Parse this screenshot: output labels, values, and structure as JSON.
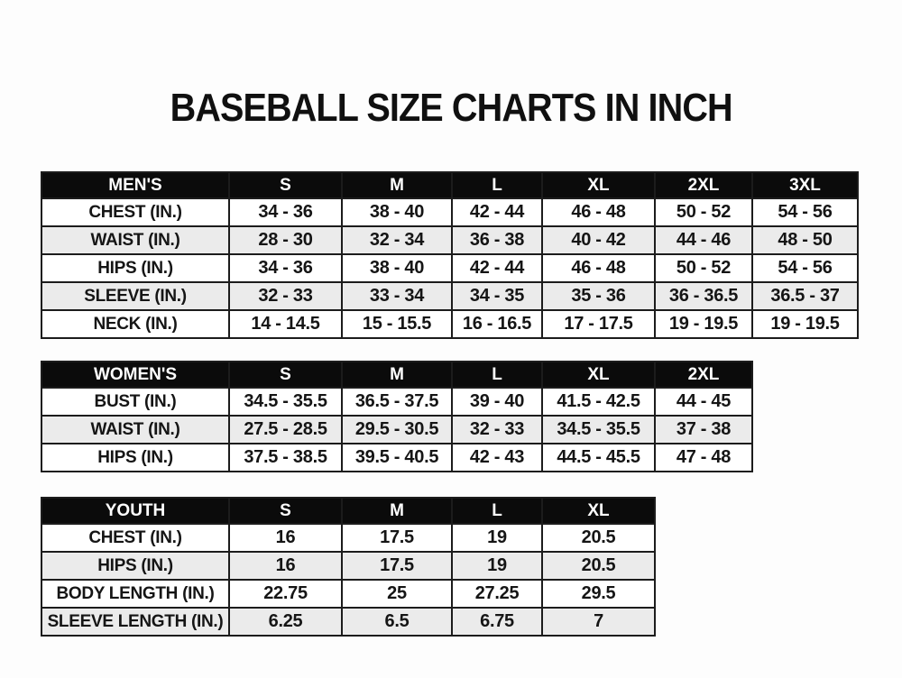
{
  "page": {
    "title": "BASEBALL SIZE CHARTS IN INCH"
  },
  "colors": {
    "header_bg": "#0b0b0b",
    "header_text": "#ffffff",
    "row_bg": "#ffffff",
    "row_alt_bg": "#ebebeb",
    "border": "#1c1c1c",
    "text": "#151515",
    "page_bg": "#fdfdfd"
  },
  "tables": [
    {
      "name": "mens",
      "header": [
        "MEN'S",
        "S",
        "M",
        "L",
        "XL",
        "2XL",
        "3XL"
      ],
      "rows": [
        {
          "label": "CHEST (IN.)",
          "values": [
            "34 - 36",
            "38 - 40",
            "42 - 44",
            "46 - 48",
            "50 - 52",
            "54 - 56"
          ]
        },
        {
          "label": "WAIST (IN.)",
          "values": [
            "28 - 30",
            "32 - 34",
            "36 - 38",
            "40 - 42",
            "44 - 46",
            "48 - 50"
          ]
        },
        {
          "label": "HIPS (IN.)",
          "values": [
            "34 - 36",
            "38 - 40",
            "42 - 44",
            "46 - 48",
            "50 - 52",
            "54 - 56"
          ]
        },
        {
          "label": "SLEEVE (IN.)",
          "values": [
            "32 - 33",
            "33 - 34",
            "34 - 35",
            "35 - 36",
            "36 - 36.5",
            "36.5 - 37"
          ]
        },
        {
          "label": "NECK (IN.)",
          "values": [
            "14 - 14.5",
            "15 - 15.5",
            "16 - 16.5",
            "17 - 17.5",
            "19 - 19.5",
            "19 - 19.5"
          ]
        }
      ]
    },
    {
      "name": "womens",
      "header": [
        "WOMEN'S",
        "S",
        "M",
        "L",
        "XL",
        "2XL"
      ],
      "rows": [
        {
          "label": "BUST (IN.)",
          "values": [
            "34.5 - 35.5",
            "36.5 - 37.5",
            "39 - 40",
            "41.5 - 42.5",
            "44 - 45"
          ]
        },
        {
          "label": "WAIST (IN.)",
          "values": [
            "27.5 - 28.5",
            "29.5 - 30.5",
            "32 - 33",
            "34.5 - 35.5",
            "37 - 38"
          ]
        },
        {
          "label": "HIPS (IN.)",
          "values": [
            "37.5 - 38.5",
            "39.5 - 40.5",
            "42 - 43",
            "44.5 - 45.5",
            "47 - 48"
          ]
        }
      ]
    },
    {
      "name": "youth",
      "header": [
        "YOUTH",
        "S",
        "M",
        "L",
        "XL"
      ],
      "rows": [
        {
          "label": "CHEST (IN.)",
          "values": [
            "16",
            "17.5",
            "19",
            "20.5"
          ]
        },
        {
          "label": "HIPS (IN.)",
          "values": [
            "16",
            "17.5",
            "19",
            "20.5"
          ]
        },
        {
          "label": "BODY LENGTH (IN.)",
          "values": [
            "22.75",
            "25",
            "27.25",
            "29.5"
          ]
        },
        {
          "label": "SLEEVE LENGTH (IN.)",
          "values": [
            "6.25",
            "6.5",
            "6.75",
            "7"
          ]
        }
      ]
    }
  ]
}
